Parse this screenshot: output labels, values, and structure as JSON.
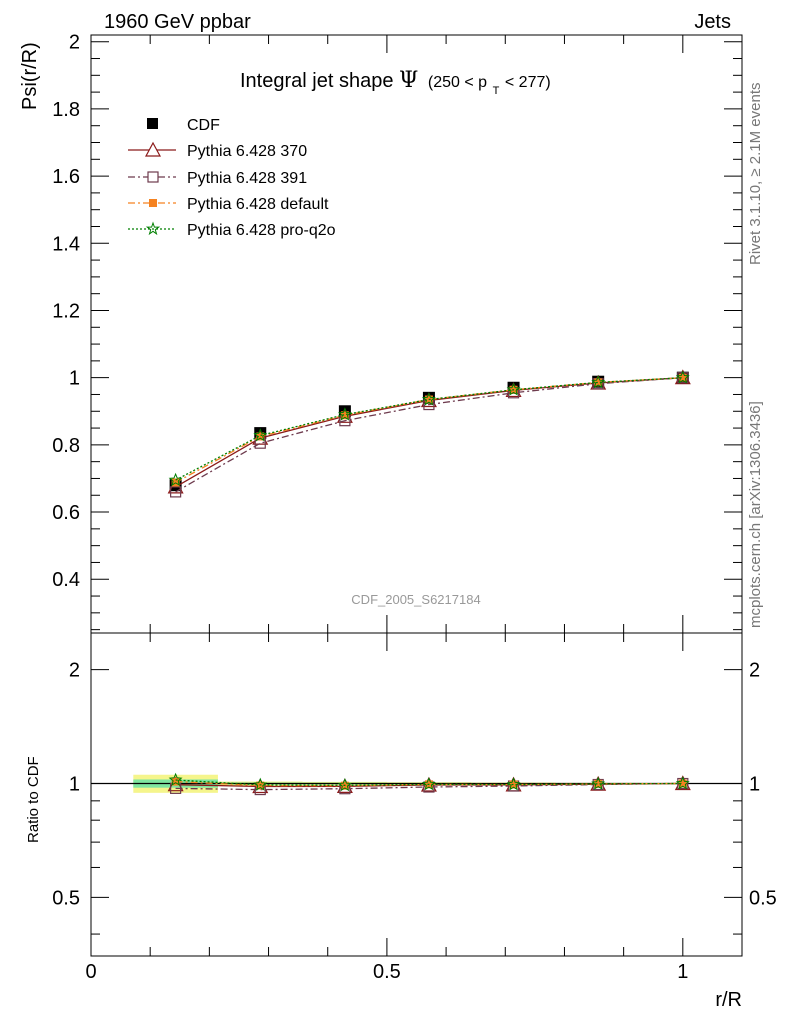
{
  "header": {
    "left": "1960 GeV ppbar",
    "right": "Jets"
  },
  "side_labels": {
    "rivet": "Rivet 3.1.10, ≥ 2.1M events",
    "mcplots": "mcplots.cern.ch [arXiv:1306.3436]"
  },
  "analysis_id": "CDF_2005_S6217184",
  "colors": {
    "cdf": "#000000",
    "p370": "#8b1a1a",
    "p391": "#6e3b4e",
    "pdefault": "#f58220",
    "pq2o": "#007f00",
    "band_outer": "#f5f58c",
    "band_inner": "#7fe6a0"
  },
  "chart_data": [
    {
      "type": "line",
      "title_main": "Integral jet shape",
      "title_symbol": "Ψ",
      "title_range_pre": "(250 < p",
      "title_range_sub": "T",
      "title_range_post": " < 277)",
      "xlabel": "r/R",
      "ylabel": "Psi(r/R)",
      "xlim": [
        0,
        1.1
      ],
      "ylim": [
        0.24,
        2.02
      ],
      "yticks": [
        "0.4",
        "0.6",
        "0.8",
        "1",
        "1.2",
        "1.4",
        "1.6",
        "1.8",
        "2"
      ],
      "x": [
        0.143,
        0.286,
        0.429,
        0.571,
        0.714,
        0.857,
        1.0
      ],
      "legend_position": "top-left",
      "series": [
        {
          "name": "CDF",
          "marker": "filled-square",
          "values": [
            0.68,
            0.835,
            0.9,
            0.94,
            0.97,
            0.988,
            1.0
          ]
        },
        {
          "name": "Pythia 6.428 370",
          "marker": "open-triangle",
          "linestyle": "solid",
          "values": [
            0.675,
            0.82,
            0.885,
            0.932,
            0.962,
            0.984,
            1.0
          ]
        },
        {
          "name": "Pythia 6.428 391",
          "marker": "open-square",
          "linestyle": "dash-dot",
          "values": [
            0.66,
            0.805,
            0.872,
            0.92,
            0.955,
            0.982,
            1.0
          ]
        },
        {
          "name": "Pythia 6.428 default",
          "marker": "filled-square",
          "linestyle": "dash-dot",
          "values": [
            0.688,
            0.825,
            0.888,
            0.935,
            0.964,
            0.986,
            1.0
          ]
        },
        {
          "name": "Pythia 6.428 pro-q2o",
          "marker": "star",
          "linestyle": "dotted",
          "values": [
            0.695,
            0.828,
            0.89,
            0.935,
            0.964,
            0.986,
            1.0
          ]
        }
      ]
    },
    {
      "type": "line",
      "xlabel": "r/R",
      "ylabel": "Ratio to CDF",
      "xlim": [
        0,
        1.1
      ],
      "ylim": [
        0.35,
        2.5
      ],
      "yscale": "log",
      "yticks": [
        "0.5",
        "1",
        "2"
      ],
      "xticks": [
        "0",
        "0.5",
        "1"
      ],
      "x": [
        0.143,
        0.286,
        0.429,
        0.571,
        0.714,
        0.857,
        1.0
      ],
      "band_halfwidth_outer": [
        0.055,
        0.012,
        0.01,
        0.008,
        0.006,
        0.004,
        0.002
      ],
      "band_halfwidth_inner": [
        0.025,
        0.006,
        0.005,
        0.004,
        0.003,
        0.002,
        0.001
      ],
      "series": [
        {
          "name": "Pythia 6.428 370",
          "values": [
            0.993,
            0.982,
            0.983,
            0.991,
            0.992,
            0.996,
            1.0
          ]
        },
        {
          "name": "Pythia 6.428 391",
          "values": [
            0.971,
            0.964,
            0.969,
            0.979,
            0.985,
            0.994,
            1.0
          ]
        },
        {
          "name": "Pythia 6.428 default",
          "values": [
            1.012,
            0.988,
            0.987,
            0.995,
            0.994,
            0.998,
            1.0
          ]
        },
        {
          "name": "Pythia 6.428 pro-q2o",
          "values": [
            1.022,
            0.992,
            0.989,
            0.995,
            0.994,
            0.998,
            1.0
          ]
        }
      ]
    }
  ]
}
